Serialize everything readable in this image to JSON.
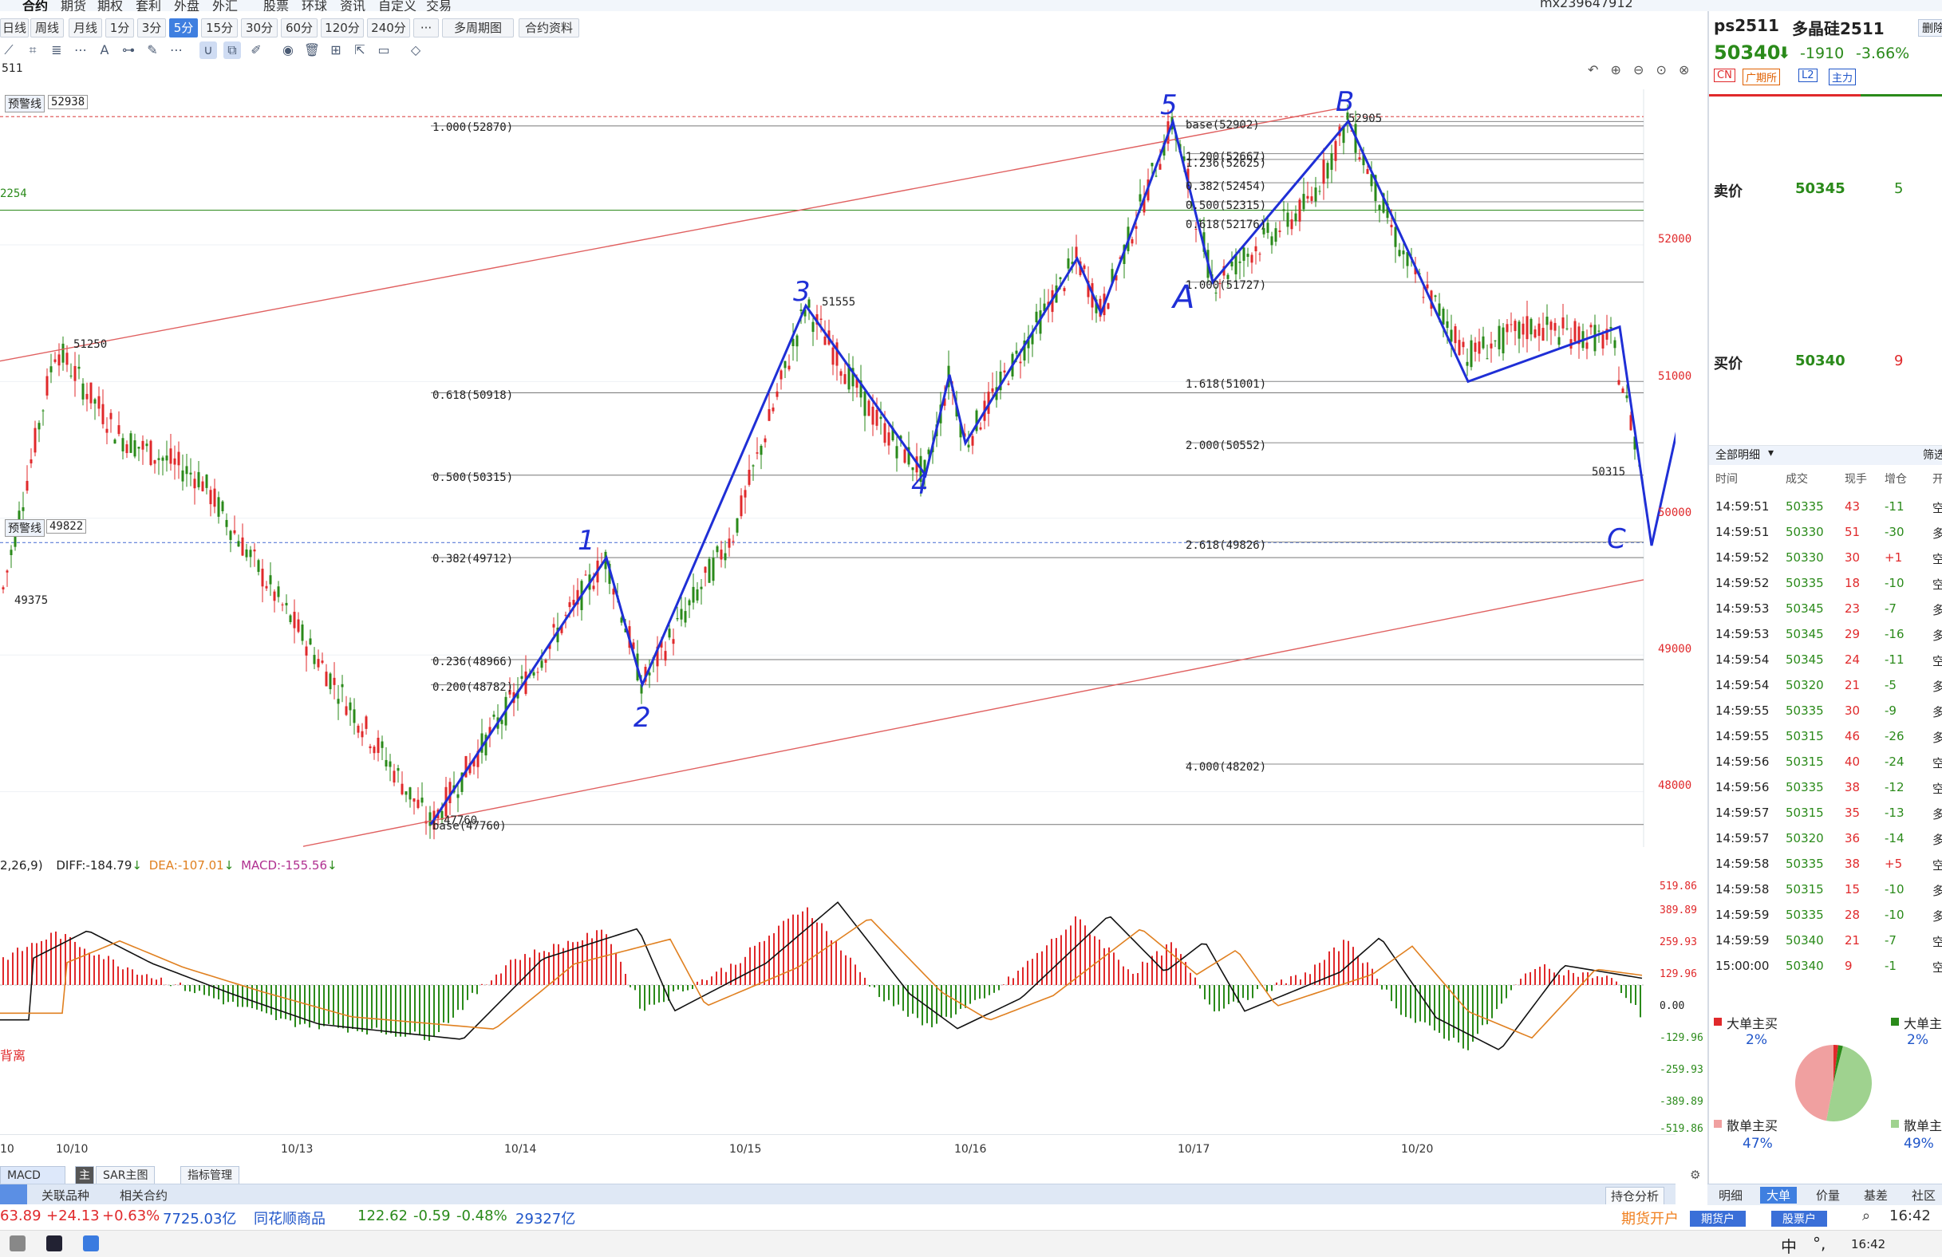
{
  "top_menu": [
    "合约",
    "期货",
    "期权",
    "套利",
    "外盘",
    "外汇",
    "股票",
    "环球",
    "资讯",
    "自定义",
    "交易"
  ],
  "account": "mx239647912",
  "periods": [
    "日线",
    "周线",
    "月线",
    "1分",
    "3分",
    "5分",
    "15分",
    "30分",
    "60分",
    "120分",
    "240分",
    "···",
    "多周期图",
    "合约资料"
  ],
  "active_period": "5分",
  "symbol_code": "511",
  "price_panel": {
    "warn_line_label": "预警线",
    "warn_high": "52938",
    "warn_low": "49822",
    "left_level": "2254",
    "high_label": "51250",
    "low_label": "49375",
    "peak3_label": "51555",
    "peak_label": "52905",
    "last_label": "50315",
    "base_low_label": "47760",
    "y_axis": [
      "52000",
      "51000",
      "50000",
      "49000",
      "48000"
    ],
    "fib_left": [
      "1.000(52870)",
      "0.618(50918)",
      "0.500(50315)",
      "0.382(49712)",
      "0.236(48966)",
      "0.200(48782)",
      "base(47760)"
    ],
    "fib_right": [
      "base(52902)",
      "1.200(52667)",
      "1.236(52625)",
      "0.382(52454)",
      "0.500(52315)",
      "0.618(52176)",
      "1.000(51727)",
      "1.618(51001)",
      "2.000(50552)",
      "2.618(49826)",
      "4.000(48202)"
    ],
    "wave_labels": [
      "1",
      "2",
      "3",
      "4",
      "5",
      "A",
      "B",
      "C"
    ]
  },
  "macd_panel": {
    "params": "2,26,9)",
    "diff": "DIFF:-184.79",
    "dea": "DEA:-107.01",
    "macd": "MACD:-155.56",
    "side_text": "背离",
    "y_axis": [
      "519.86",
      "389.89",
      "259.93",
      "129.96",
      "0.00",
      "-129.96",
      "-259.93",
      "-389.89",
      "-519.86"
    ]
  },
  "dates": [
    "10",
    "10/10",
    "10/13",
    "10/14",
    "10/15",
    "10/16",
    "10/17",
    "10/20"
  ],
  "bottom_tabs": [
    "MACD",
    "主",
    "SAR主图",
    "指标管理"
  ],
  "lower_tabs": [
    "关联品种",
    "相关合约",
    "持仓分析"
  ],
  "ticker": {
    "a": "63.89",
    "b": "+24.13",
    "c": "+0.63%",
    "d": "7725.03亿",
    "name": "同花顺商品",
    "e": "122.62",
    "f": "-0.59",
    "g": "-0.48%",
    "h": "29327亿",
    "open_fut": "期货开户",
    "fut_btn": "期货户",
    "stock_btn": "股票户",
    "time": "16:42"
  },
  "right": {
    "code": "ps2511",
    "name": "多晶硅2511",
    "price": "50340",
    "change": "-1910",
    "change_pct": "-3.66%",
    "tags": [
      "CN",
      "广期所",
      "L2",
      "主力"
    ],
    "sell_label": "卖价",
    "sell_price": "50345",
    "sell_vol": "5",
    "buy_label": "买价",
    "buy_price": "50340",
    "buy_vol": "9",
    "detail_title": "全部明细",
    "filter": "筛选",
    "right_top_btn": "删除",
    "headers": [
      "时间",
      "成交",
      "现手",
      "增仓",
      "开"
    ],
    "trades": [
      [
        "14:59:51",
        "50335",
        "43",
        "-11",
        "空"
      ],
      [
        "14:59:51",
        "50330",
        "51",
        "-30",
        "多"
      ],
      [
        "14:59:52",
        "50330",
        "30",
        "+1",
        "空"
      ],
      [
        "14:59:52",
        "50335",
        "18",
        "-10",
        "空"
      ],
      [
        "14:59:53",
        "50345",
        "23",
        "-7",
        "多"
      ],
      [
        "14:59:53",
        "50345",
        "29",
        "-16",
        "多"
      ],
      [
        "14:59:54",
        "50345",
        "24",
        "-11",
        "空"
      ],
      [
        "14:59:54",
        "50320",
        "21",
        "-5",
        "多"
      ],
      [
        "14:59:55",
        "50335",
        "30",
        "-9",
        "多"
      ],
      [
        "14:59:55",
        "50315",
        "46",
        "-26",
        "多"
      ],
      [
        "14:59:56",
        "50315",
        "40",
        "-24",
        "空"
      ],
      [
        "14:59:56",
        "50335",
        "38",
        "-12",
        "空"
      ],
      [
        "14:59:57",
        "50315",
        "35",
        "-13",
        "多"
      ],
      [
        "14:59:57",
        "50320",
        "36",
        "-14",
        "多"
      ],
      [
        "14:59:58",
        "50335",
        "38",
        "+5",
        "空"
      ],
      [
        "14:59:58",
        "50315",
        "15",
        "-10",
        "多"
      ],
      [
        "14:59:59",
        "50335",
        "28",
        "-10",
        "多"
      ],
      [
        "14:59:59",
        "50340",
        "21",
        "-7",
        "空"
      ],
      [
        "15:00:00",
        "50340",
        "9",
        "-1",
        "空"
      ]
    ],
    "big_buy": "大单主买",
    "big_buy_pct": "2%",
    "big_sell": "大单主",
    "big_sell_pct": "2%",
    "retail_buy": "散单主买",
    "retail_buy_pct": "47%",
    "retail_sell": "散单主",
    "retail_sell_pct": "49%",
    "tabs": [
      "明细",
      "大单",
      "价量",
      "基差",
      "社区"
    ],
    "active_tab": "大单"
  },
  "colors": {
    "up": "#e0292b",
    "down": "#2a8a1a",
    "wave": "#1f2fd6",
    "channel": "#e06060",
    "accent": "#3f7fe0",
    "diff": "#111111",
    "dea": "#e08020"
  }
}
